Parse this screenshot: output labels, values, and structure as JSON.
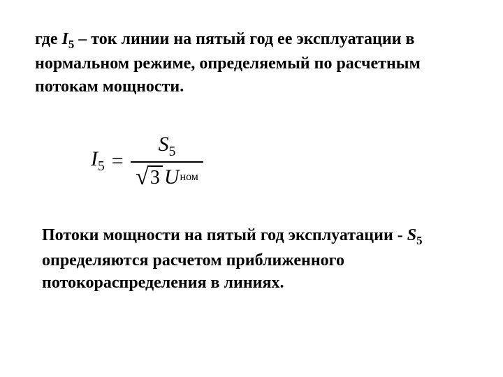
{
  "para1": {
    "prefix": "где ",
    "var": "I",
    "sub": "5",
    "rest": " – ток линии на пятый год ее эксплуатации в нормальном режиме, определяемый по расчетным потокам мощности."
  },
  "formula": {
    "lhs_var": "I",
    "lhs_sub": "5",
    "eq": "=",
    "num_var": "S",
    "num_sub": "5",
    "sqrt_val": "3",
    "den_var": "U",
    "den_sub": "ном"
  },
  "para2": {
    "prefix": "Потоки мощности на пятый год эксплуатации - ",
    "var": "S",
    "sub": "5",
    "rest": " определяются расчетом приближенного потокораспределения в линиях."
  }
}
